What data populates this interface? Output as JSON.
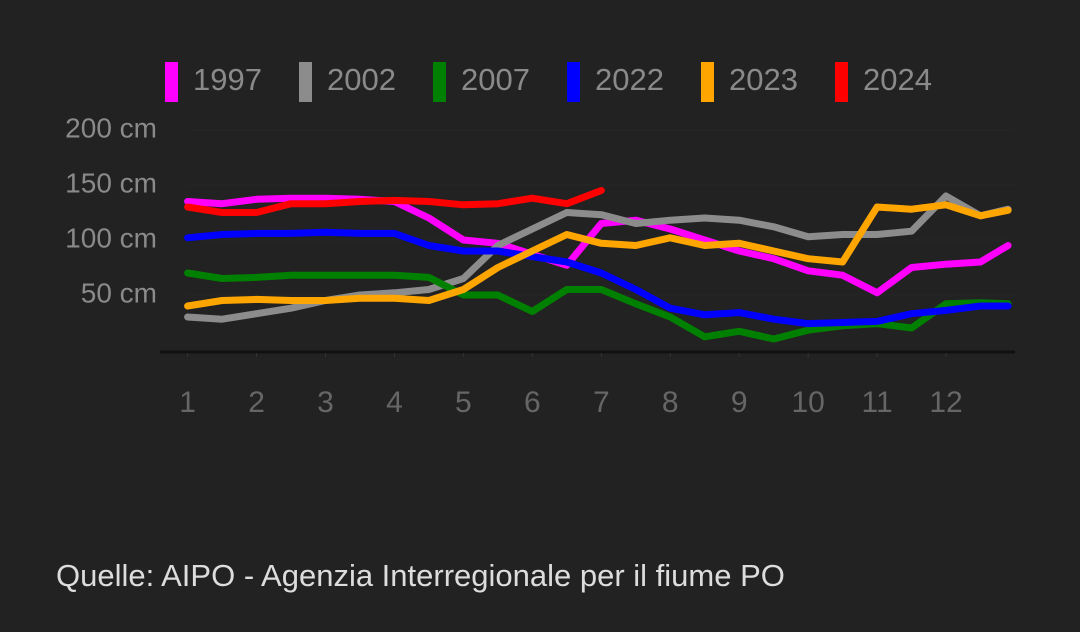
{
  "chart_data": {
    "type": "line",
    "x": [
      1,
      1.5,
      2,
      2.5,
      3,
      3.5,
      4,
      4.5,
      5,
      5.5,
      6,
      6.5,
      7,
      7.5,
      8,
      8.5,
      9,
      9.5,
      10,
      10.5,
      11,
      11.5,
      12,
      12.5,
      12.9
    ],
    "series": [
      {
        "name": "1997",
        "color": "#ff00ff",
        "values": [
          135,
          133,
          137,
          138,
          138,
          137,
          135,
          120,
          100,
          97,
          87,
          77,
          115,
          118,
          110,
          100,
          90,
          83,
          72,
          68,
          52,
          75,
          78,
          80,
          95
        ]
      },
      {
        "name": "2002",
        "color": "#8c8c8c",
        "values": [
          30,
          28,
          33,
          38,
          45,
          50,
          52,
          55,
          65,
          95,
          110,
          125,
          123,
          115,
          118,
          120,
          118,
          112,
          103,
          105,
          105,
          108,
          140,
          122,
          128
        ]
      },
      {
        "name": "2007",
        "color": "#008000",
        "values": [
          70,
          65,
          66,
          68,
          68,
          68,
          68,
          66,
          50,
          50,
          35,
          55,
          55,
          42,
          30,
          12,
          17,
          10,
          18,
          22,
          24,
          20,
          42,
          43,
          42
        ]
      },
      {
        "name": "2022",
        "color": "#0000ff",
        "values": [
          102,
          105,
          106,
          106,
          107,
          106,
          106,
          95,
          90,
          90,
          85,
          80,
          70,
          55,
          38,
          32,
          34,
          28,
          24,
          25,
          26,
          33,
          36,
          40,
          40
        ]
      },
      {
        "name": "2023",
        "color": "#ffa500",
        "values": [
          40,
          45,
          46,
          45,
          45,
          47,
          47,
          45,
          55,
          75,
          90,
          105,
          97,
          95,
          102,
          95,
          97,
          90,
          83,
          80,
          130,
          128,
          132,
          122,
          127
        ]
      },
      {
        "name": "2024",
        "color": "#ff0000",
        "values": [
          130,
          125,
          125,
          133,
          133,
          135,
          136,
          135,
          132,
          133,
          138,
          133,
          145,
          null,
          null,
          null,
          null,
          null,
          null,
          null,
          null,
          null,
          null,
          null,
          null
        ]
      }
    ],
    "xlim": [
      0.6,
      13
    ],
    "xticks": [
      1,
      2,
      3,
      4,
      5,
      6,
      7,
      8,
      9,
      10,
      11,
      12
    ],
    "ylim": [
      0,
      200
    ],
    "yticks": [
      {
        "value": 50,
        "label": "50 cm"
      },
      {
        "value": 100,
        "label": "100 cm"
      },
      {
        "value": 150,
        "label": "150 cm"
      },
      {
        "value": 200,
        "label": "200 cm"
      }
    ],
    "grid": true,
    "source": "Quelle: AIPO - Agenzia Interregionale per il fiume PO"
  }
}
